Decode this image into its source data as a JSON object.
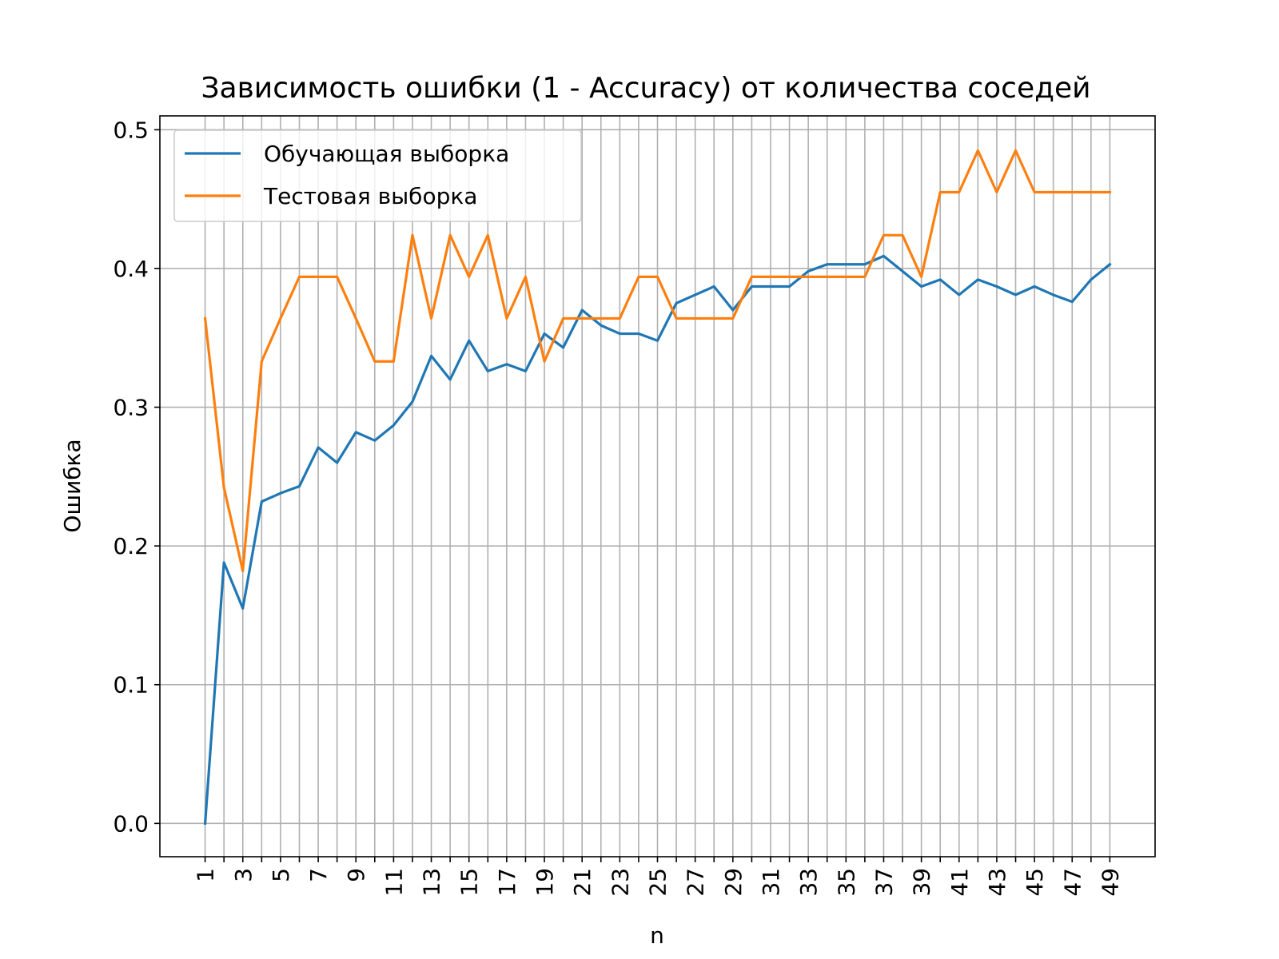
{
  "chart_data": {
    "type": "line",
    "title": "Зависимость ошибки (1 - Accuracy) от количества соседей",
    "xlabel": "n",
    "ylabel": "Ошибка",
    "xlim": [
      -1.4,
      51.4
    ],
    "ylim": [
      -0.024,
      0.51
    ],
    "x_ticks": [
      "1",
      "3",
      "5",
      "7",
      "9",
      "11",
      "13",
      "15",
      "17",
      "19",
      "21",
      "23",
      "25",
      "27",
      "29",
      "31",
      "33",
      "35",
      "37",
      "39",
      "41",
      "43",
      "45",
      "47",
      "49"
    ],
    "y_ticks": [
      "0.0",
      "0.1",
      "0.2",
      "0.3",
      "0.4",
      "0.5"
    ],
    "grid": true,
    "legend_position": "upper-left",
    "x": [
      1,
      2,
      3,
      4,
      5,
      6,
      7,
      8,
      9,
      10,
      11,
      12,
      13,
      14,
      15,
      16,
      17,
      18,
      19,
      20,
      21,
      22,
      23,
      24,
      25,
      26,
      27,
      28,
      29,
      30,
      31,
      32,
      33,
      34,
      35,
      36,
      37,
      38,
      39,
      40,
      41,
      42,
      43,
      44,
      45,
      46,
      47,
      48,
      49
    ],
    "series": [
      {
        "name": "Обучающая выборка",
        "color": "#1f77b4",
        "values": [
          0.0,
          0.188,
          0.155,
          0.232,
          0.238,
          0.243,
          0.271,
          0.26,
          0.282,
          0.276,
          0.287,
          0.304,
          0.337,
          0.32,
          0.348,
          0.326,
          0.331,
          0.326,
          0.353,
          0.343,
          0.37,
          0.359,
          0.353,
          0.353,
          0.348,
          0.375,
          0.381,
          0.387,
          0.37,
          0.387,
          0.387,
          0.387,
          0.398,
          0.403,
          0.403,
          0.403,
          0.409,
          0.398,
          0.387,
          0.392,
          0.381,
          0.392,
          0.387,
          0.381,
          0.387,
          0.381,
          0.376,
          0.392,
          0.403
        ]
      },
      {
        "name": "Тестовая выборка",
        "color": "#ff7f0e",
        "values": [
          0.364,
          0.242,
          0.182,
          0.333,
          0.364,
          0.394,
          0.394,
          0.394,
          0.364,
          0.333,
          0.333,
          0.424,
          0.364,
          0.424,
          0.394,
          0.424,
          0.364,
          0.394,
          0.333,
          0.364,
          0.364,
          0.364,
          0.364,
          0.394,
          0.394,
          0.364,
          0.364,
          0.364,
          0.364,
          0.394,
          0.394,
          0.394,
          0.394,
          0.394,
          0.394,
          0.394,
          0.424,
          0.424,
          0.394,
          0.455,
          0.455,
          0.485,
          0.455,
          0.485,
          0.455,
          0.455,
          0.455,
          0.455,
          0.455
        ]
      }
    ]
  }
}
